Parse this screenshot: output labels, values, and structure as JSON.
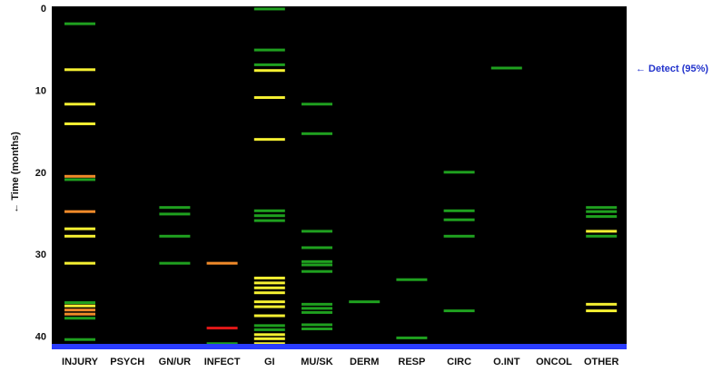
{
  "chart_data": {
    "type": "event-raster",
    "ylabel": "← Time (months)",
    "ylim": [
      0,
      41
    ],
    "y_reversed": true,
    "yticks": [
      0,
      10,
      20,
      30,
      40
    ],
    "categories": [
      "INJURY",
      "PSYCH",
      "GN/UR",
      "INFECT",
      "GI",
      "MU/SK",
      "DERM",
      "RESP",
      "CIRC",
      "O.INT",
      "ONCOL",
      "OTHER"
    ],
    "colors": {
      "green": "#1fa01f",
      "yellow": "#f5f032",
      "orange": "#f08a2a",
      "red": "#e01818",
      "baseline": "#2a3cff",
      "plot_bg": "#000000"
    },
    "annotation": {
      "text": "← Detect (95%)",
      "y": 7.3
    },
    "events": [
      {
        "category": "INJURY",
        "t": 1.9,
        "color": "green"
      },
      {
        "category": "INJURY",
        "t": 7.5,
        "color": "yellow"
      },
      {
        "category": "INJURY",
        "t": 11.7,
        "color": "yellow"
      },
      {
        "category": "INJURY",
        "t": 14.1,
        "color": "yellow"
      },
      {
        "category": "INJURY",
        "t": 20.5,
        "color": "orange"
      },
      {
        "category": "INJURY",
        "t": 20.9,
        "color": "green"
      },
      {
        "category": "INJURY",
        "t": 24.8,
        "color": "orange"
      },
      {
        "category": "INJURY",
        "t": 26.9,
        "color": "yellow"
      },
      {
        "category": "INJURY",
        "t": 27.8,
        "color": "yellow"
      },
      {
        "category": "INJURY",
        "t": 31.1,
        "color": "yellow"
      },
      {
        "category": "INJURY",
        "t": 35.9,
        "color": "green"
      },
      {
        "category": "INJURY",
        "t": 36.3,
        "color": "yellow"
      },
      {
        "category": "INJURY",
        "t": 36.8,
        "color": "orange"
      },
      {
        "category": "INJURY",
        "t": 37.3,
        "color": "orange"
      },
      {
        "category": "INJURY",
        "t": 37.8,
        "color": "green"
      },
      {
        "category": "INJURY",
        "t": 40.4,
        "color": "green"
      },
      {
        "category": "GN/UR",
        "t": 24.3,
        "color": "green"
      },
      {
        "category": "GN/UR",
        "t": 25.1,
        "color": "green"
      },
      {
        "category": "GN/UR",
        "t": 27.8,
        "color": "green"
      },
      {
        "category": "GN/UR",
        "t": 31.1,
        "color": "green"
      },
      {
        "category": "INFECT",
        "t": 31.1,
        "color": "orange"
      },
      {
        "category": "INFECT",
        "t": 39.0,
        "color": "red"
      },
      {
        "category": "INFECT",
        "t": 40.9,
        "color": "green"
      },
      {
        "category": "GI",
        "t": 0.1,
        "color": "green"
      },
      {
        "category": "GI",
        "t": 5.1,
        "color": "green"
      },
      {
        "category": "GI",
        "t": 6.9,
        "color": "green"
      },
      {
        "category": "GI",
        "t": 7.6,
        "color": "yellow"
      },
      {
        "category": "GI",
        "t": 10.9,
        "color": "yellow"
      },
      {
        "category": "GI",
        "t": 16.0,
        "color": "yellow"
      },
      {
        "category": "GI",
        "t": 24.7,
        "color": "green"
      },
      {
        "category": "GI",
        "t": 25.3,
        "color": "green"
      },
      {
        "category": "GI",
        "t": 25.9,
        "color": "green"
      },
      {
        "category": "GI",
        "t": 32.9,
        "color": "yellow"
      },
      {
        "category": "GI",
        "t": 33.5,
        "color": "yellow"
      },
      {
        "category": "GI",
        "t": 34.1,
        "color": "yellow"
      },
      {
        "category": "GI",
        "t": 34.7,
        "color": "yellow"
      },
      {
        "category": "GI",
        "t": 35.8,
        "color": "yellow"
      },
      {
        "category": "GI",
        "t": 36.4,
        "color": "yellow"
      },
      {
        "category": "GI",
        "t": 37.5,
        "color": "yellow"
      },
      {
        "category": "GI",
        "t": 38.7,
        "color": "green"
      },
      {
        "category": "GI",
        "t": 39.2,
        "color": "green"
      },
      {
        "category": "GI",
        "t": 39.8,
        "color": "yellow"
      },
      {
        "category": "GI",
        "t": 40.3,
        "color": "yellow"
      },
      {
        "category": "GI",
        "t": 40.9,
        "color": "yellow"
      },
      {
        "category": "MU/SK",
        "t": 11.7,
        "color": "green"
      },
      {
        "category": "MU/SK",
        "t": 15.3,
        "color": "green"
      },
      {
        "category": "MU/SK",
        "t": 27.2,
        "color": "green"
      },
      {
        "category": "MU/SK",
        "t": 29.2,
        "color": "green"
      },
      {
        "category": "MU/SK",
        "t": 30.9,
        "color": "green"
      },
      {
        "category": "MU/SK",
        "t": 31.3,
        "color": "green"
      },
      {
        "category": "MU/SK",
        "t": 32.1,
        "color": "green"
      },
      {
        "category": "MU/SK",
        "t": 36.1,
        "color": "green"
      },
      {
        "category": "MU/SK",
        "t": 36.6,
        "color": "green"
      },
      {
        "category": "MU/SK",
        "t": 37.1,
        "color": "green"
      },
      {
        "category": "MU/SK",
        "t": 38.6,
        "color": "green"
      },
      {
        "category": "MU/SK",
        "t": 39.1,
        "color": "green"
      },
      {
        "category": "DERM",
        "t": 35.8,
        "color": "green"
      },
      {
        "category": "RESP",
        "t": 33.1,
        "color": "green"
      },
      {
        "category": "RESP",
        "t": 40.2,
        "color": "green"
      },
      {
        "category": "CIRC",
        "t": 20.0,
        "color": "green"
      },
      {
        "category": "CIRC",
        "t": 24.7,
        "color": "green"
      },
      {
        "category": "CIRC",
        "t": 25.8,
        "color": "green"
      },
      {
        "category": "CIRC",
        "t": 27.8,
        "color": "green"
      },
      {
        "category": "CIRC",
        "t": 36.9,
        "color": "green"
      },
      {
        "category": "O.INT",
        "t": 7.3,
        "color": "green"
      },
      {
        "category": "OTHER",
        "t": 24.3,
        "color": "green"
      },
      {
        "category": "OTHER",
        "t": 24.8,
        "color": "green"
      },
      {
        "category": "OTHER",
        "t": 25.4,
        "color": "green"
      },
      {
        "category": "OTHER",
        "t": 27.2,
        "color": "yellow"
      },
      {
        "category": "OTHER",
        "t": 27.8,
        "color": "green"
      },
      {
        "category": "OTHER",
        "t": 36.1,
        "color": "yellow"
      },
      {
        "category": "OTHER",
        "t": 36.9,
        "color": "yellow"
      }
    ]
  }
}
